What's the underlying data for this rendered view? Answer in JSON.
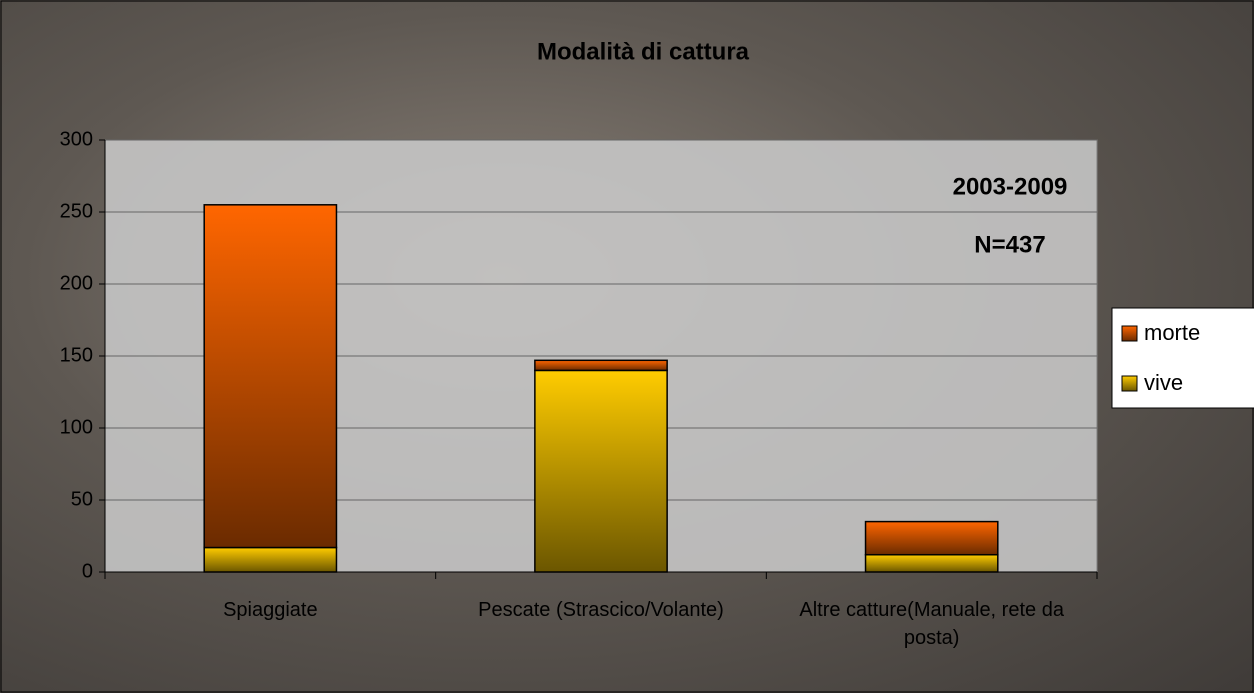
{
  "chart_data": {
    "type": "stacked_bar",
    "title": "Modalità di cattura",
    "annotations": [
      "2003-2009",
      "N=437"
    ],
    "categories": [
      "Spiaggiate",
      "Pescate (Strascico/Volante)",
      "Altre catture(Manuale, rete da posta)"
    ],
    "series": [
      {
        "name": "vive",
        "color": "#ffcc00",
        "values": [
          17,
          140,
          12
        ]
      },
      {
        "name": "morte",
        "color": "#ff6600",
        "values": [
          238,
          7,
          23
        ]
      }
    ],
    "ylim": [
      0,
      300
    ],
    "yticks": [
      0,
      50,
      100,
      150,
      200,
      250,
      300
    ],
    "grid": true,
    "legend": "right"
  }
}
